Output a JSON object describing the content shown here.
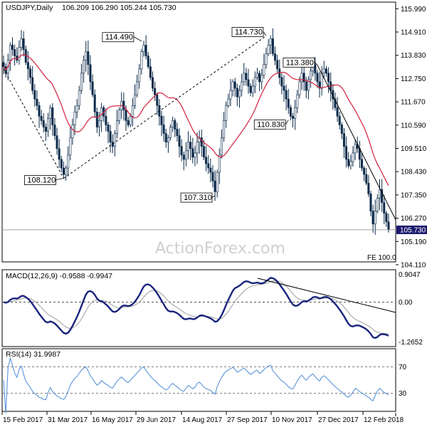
{
  "colors": {
    "candle": "#0b2a4a",
    "ma": "#d21f3c",
    "macd": "#1a237e",
    "signal": "#9e9e9e",
    "rsi": "#4a8bd6",
    "trend": "#000000",
    "grid": "#b0b0b0",
    "price_box": "#1a1a6e"
  },
  "chart_data": [
    {
      "type": "candlestick",
      "title": "USDJPY,Daily",
      "ohlc_text": "106.209 106.290 105.244 105.730",
      "ylim": [
        104.11,
        116.0
      ],
      "y_ticks": [
        "115.990",
        "114.910",
        "113.830",
        "112.750",
        "111.670",
        "110.590",
        "109.510",
        "108.430",
        "107.350",
        "106.270",
        "105.190",
        "104.110"
      ],
      "last_price": "105.730",
      "last_value": 105.73,
      "annotations": [
        {
          "text": "114.490",
          "value": 114.49,
          "index": 62
        },
        {
          "text": "114.730",
          "value": 114.73,
          "index": 118
        },
        {
          "text": "113.380",
          "value": 113.38,
          "index": 141
        },
        {
          "text": "110.830",
          "value": 110.83,
          "index": 128
        },
        {
          "text": "108.120",
          "value": 108.12,
          "index": 27
        },
        {
          "text": "107.310",
          "value": 107.31,
          "index": 95
        }
      ],
      "fe_label": "FE 100.0",
      "watermark": "ActionForex.com",
      "closes": [
        113.3,
        113.0,
        113.6,
        114.3,
        114.1,
        113.8,
        113.6,
        114.2,
        114.6,
        114.1,
        113.5,
        113.2,
        112.8,
        112.2,
        111.8,
        111.5,
        111.0,
        110.8,
        110.5,
        110.3,
        110.9,
        111.4,
        110.6,
        110.1,
        109.5,
        109.0,
        108.6,
        108.3,
        108.6,
        109.2,
        110.0,
        110.6,
        111.2,
        111.5,
        112.2,
        113.0,
        113.6,
        114.0,
        113.4,
        112.6,
        112.0,
        111.2,
        110.5,
        110.8,
        111.4,
        111.0,
        110.6,
        110.3,
        109.8,
        109.6,
        110.2,
        110.8,
        111.3,
        111.7,
        111.3,
        110.8,
        110.6,
        111.0,
        111.5,
        112.0,
        112.6,
        113.2,
        114.0,
        114.3,
        113.8,
        113.3,
        112.8,
        112.3,
        112.0,
        111.5,
        111.0,
        110.6,
        110.2,
        109.8,
        110.0,
        110.5,
        110.8,
        110.4,
        110.1,
        109.6,
        109.2,
        109.0,
        109.4,
        109.8,
        109.5,
        109.1,
        109.3,
        109.8,
        110.0,
        109.6,
        109.1,
        108.8,
        108.6,
        108.4,
        108.0,
        107.5,
        108.4,
        109.2,
        110.0,
        110.8,
        111.5,
        111.8,
        112.2,
        112.6,
        112.3,
        111.9,
        112.2,
        112.6,
        113.0,
        112.7,
        112.4,
        112.1,
        112.4,
        112.8,
        113.0,
        112.6,
        112.9,
        113.4,
        113.9,
        114.3,
        114.6,
        113.9,
        113.6,
        113.2,
        112.8,
        112.4,
        112.2,
        111.8,
        111.4,
        111.0,
        110.9,
        111.4,
        112.0,
        112.6,
        113.0,
        112.6,
        112.2,
        112.7,
        113.1,
        113.4,
        113.0,
        112.6,
        112.3,
        113.0,
        113.2,
        113.0,
        112.6,
        112.2,
        111.8,
        111.4,
        111.0,
        110.6,
        110.2,
        109.6,
        109.0,
        108.7,
        108.9,
        109.3,
        109.7,
        109.5,
        109.0,
        108.6,
        108.3,
        107.9,
        107.4,
        106.6,
        106.0,
        106.6,
        107.2,
        107.6,
        107.0,
        106.5,
        106.1,
        105.73
      ],
      "macd_label": "MACD(12,26,9) -0.9588 -0.9947",
      "macd_ylim": [
        -1.6,
        1.15
      ],
      "macd_ticks": [
        "0.9047",
        "0.00",
        "-1.2652"
      ],
      "rsi_label": "RSI(14) 31.9987",
      "rsi_ticks": [
        "70",
        "30"
      ],
      "rsi_ylim": [
        5,
        95
      ],
      "x_labels": [
        "15 Feb 2017",
        "31 Mar 2017",
        "16 May 2017",
        "29 Jun 2017",
        "14 Aug 2017",
        "27 Sep 2017",
        "10 Nov 2017",
        "27 Dec 2017",
        "12 Feb 2018"
      ]
    }
  ]
}
